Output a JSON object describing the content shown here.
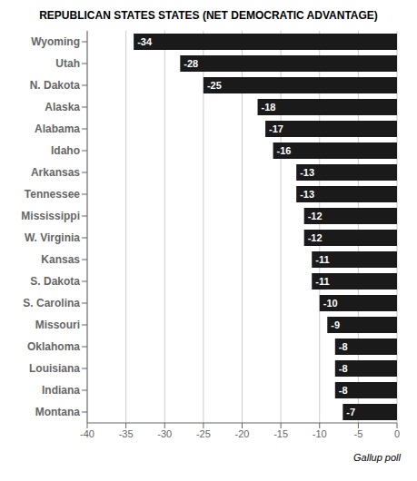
{
  "chart_data": {
    "type": "bar",
    "title": "REPUBLICAN STATES STATES (NET DEMOCRATIC ADVANTAGE)",
    "categories": [
      "Wyoming",
      "Utah",
      "N. Dakota",
      "Alaska",
      "Alabama",
      "Idaho",
      "Arkansas",
      "Tennessee",
      "Mississippi",
      "W. Virginia",
      "Kansas",
      "S. Dakota",
      "S. Carolina",
      "Missouri",
      "Oklahoma",
      "Louisiana",
      "Indiana",
      "Montana"
    ],
    "values": [
      -34,
      -28,
      -25,
      -18,
      -17,
      -16,
      -13,
      -13,
      -12,
      -12,
      -11,
      -11,
      -10,
      -9,
      -8,
      -8,
      -8,
      -7
    ],
    "color": "#1a1a1a",
    "orientation": "horizontal",
    "xlim": [
      -40,
      0
    ],
    "xticks": [
      -40,
      -35,
      -30,
      -25,
      -20,
      -15,
      -10,
      -5,
      0
    ],
    "grid": true,
    "data_labels": true,
    "annotation": "Gallup poll"
  }
}
